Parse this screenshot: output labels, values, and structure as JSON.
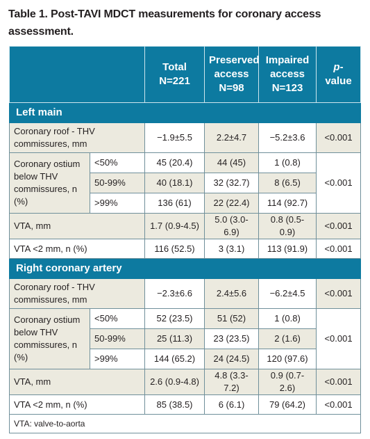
{
  "title": "Table 1. Post-TAVI MDCT measurements for coronary access assessment.",
  "header": {
    "total": [
      "Total",
      "N=221"
    ],
    "preserved": [
      "Preserved",
      "access",
      "N=98"
    ],
    "impaired": [
      "Impaired",
      "access",
      "N=123"
    ],
    "pvalue_italic": "p",
    "pvalue_rest": "-value"
  },
  "sections": [
    {
      "name": "Left main",
      "roof": {
        "label": "Coronary roof - THV commissures, mm",
        "total": "−1.9±5.5",
        "preserved": "2.2±4.7",
        "impaired": "−5.2±3.6",
        "p": "<0.001"
      },
      "ostium": {
        "label": "Coronary ostium below THV commissures, n (%)",
        "p": "<0.001",
        "rows": [
          {
            "cat": "<50%",
            "total": "45 (20.4)",
            "preserved": "44 (45)",
            "impaired": "1 (0.8)"
          },
          {
            "cat": "50-99%",
            "total": "40 (18.1)",
            "preserved": "32 (32.7)",
            "impaired": "8 (6.5)"
          },
          {
            "cat": ">99%",
            "total": "136 (61)",
            "preserved": "22 (22.4)",
            "impaired": "114 (92.7)"
          }
        ]
      },
      "vta": {
        "label": "VTA, mm",
        "total": "1.7 (0.9-4.5)",
        "preserved": "5.0 (3.0-6.9)",
        "impaired": "0.8 (0.5-0.9)",
        "p": "<0.001"
      },
      "vta2": {
        "label": "VTA <2 mm, n (%)",
        "total": "116 (52.5)",
        "preserved": "3 (3.1)",
        "impaired": "113 (91.9)",
        "p": "<0.001"
      }
    },
    {
      "name": "Right coronary artery",
      "roof": {
        "label": "Coronary roof - THV commissures, mm",
        "total": "−2.3±6.6",
        "preserved": "2.4±5.6",
        "impaired": "−6.2±4.5",
        "p": "<0.001"
      },
      "ostium": {
        "label": "Coronary ostium below THV commissures, n (%)",
        "p": "<0.001",
        "rows": [
          {
            "cat": "<50%",
            "total": "52 (23.5)",
            "preserved": "51 (52)",
            "impaired": "1 (0.8)"
          },
          {
            "cat": "50-99%",
            "total": "25 (11.3)",
            "preserved": "23 (23.5)",
            "impaired": "2 (1.6)"
          },
          {
            "cat": ">99%",
            "total": "144 (65.2)",
            "preserved": "24 (24.5)",
            "impaired": "120 (97.6)"
          }
        ]
      },
      "vta": {
        "label": "VTA, mm",
        "total": "2.6 (0.9-4.8)",
        "preserved": "4.8 (3.3-7.2)",
        "impaired": "0.9 (0.7-2.6)",
        "p": "<0.001"
      },
      "vta2": {
        "label": "VTA <2 mm, n (%)",
        "total": "85 (38.5)",
        "preserved": "6 (6.1)",
        "impaired": "79 (64.2)",
        "p": "<0.001"
      }
    }
  ],
  "footnote": "VTA: valve-to-aorta",
  "colors": {
    "header_bg": "#0d7aa0",
    "tint_bg": "#eceadf",
    "border": "#6f8f9a"
  }
}
